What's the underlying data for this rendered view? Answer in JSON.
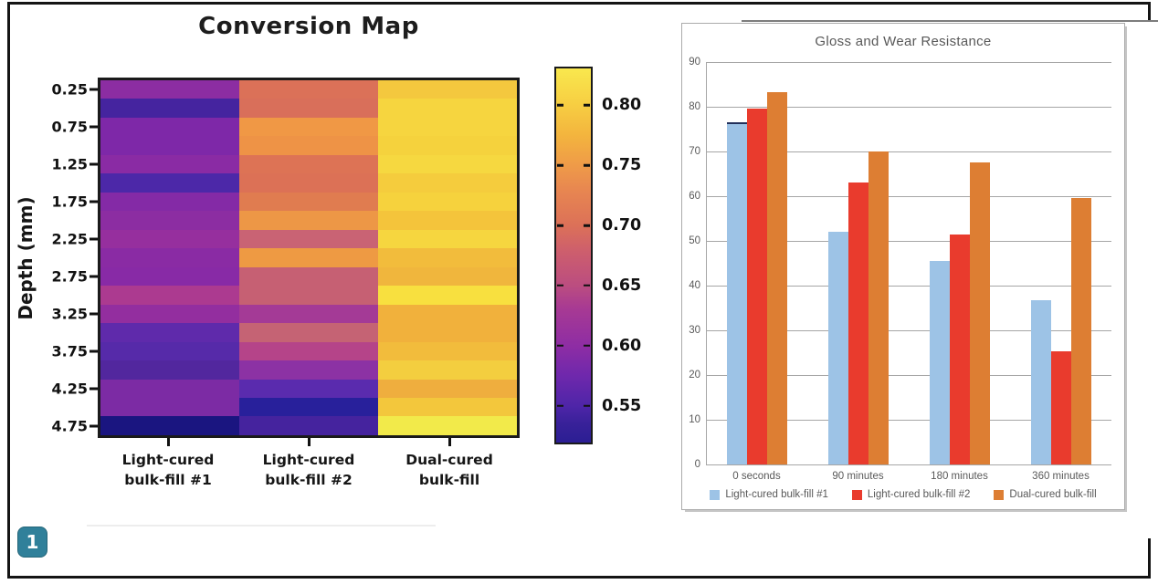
{
  "page": {
    "figure_badge": "1",
    "badge_color": "#30809a"
  },
  "chart_data": [
    {
      "type": "heatmap",
      "title": "Conversion Map",
      "ylabel": "Depth (mm)",
      "depth_mm": [
        0.25,
        0.5,
        0.75,
        1.0,
        1.25,
        1.5,
        1.75,
        2.0,
        2.25,
        2.5,
        2.75,
        3.0,
        3.25,
        3.5,
        3.75,
        4.0,
        4.25,
        4.5,
        4.75
      ],
      "depth_tick_labels": [
        "0.25",
        "0.75",
        "1.25",
        "1.75",
        "2.25",
        "2.75",
        "3.25",
        "3.75",
        "4.25",
        "4.75"
      ],
      "columns": [
        {
          "label": "Light-cured\nbulk-fill #1",
          "values": [
            0.62,
            0.555,
            0.61,
            0.61,
            0.615,
            0.56,
            0.61,
            0.62,
            0.625,
            0.615,
            0.615,
            0.645,
            0.625,
            0.585,
            0.575,
            0.57,
            0.605,
            0.605,
            0.535
          ],
          "colors": [
            "#8c2da2",
            "#45249f",
            "#7e28a8",
            "#7e28a8",
            "#8a2ba4",
            "#4c28a8",
            "#842aa6",
            "#8c2da2",
            "#962f9e",
            "#8a2ba4",
            "#882aa6",
            "#ac3a90",
            "#932e9f",
            "#5f2aab",
            "#562aa9",
            "#52279e",
            "#7c2ba4",
            "#7c2ba4",
            "#1a1580"
          ]
        },
        {
          "label": "Light-cured\nbulk-fill #2",
          "values": [
            0.7,
            0.7,
            0.735,
            0.73,
            0.705,
            0.7,
            0.71,
            0.735,
            0.68,
            0.74,
            0.675,
            0.675,
            0.64,
            0.675,
            0.655,
            0.62,
            0.58,
            0.54,
            0.555
          ],
          "colors": [
            "#db7158",
            "#d96f5a",
            "#f09845",
            "#ee9346",
            "#dd7355",
            "#dc7156",
            "#e07c50",
            "#ed9746",
            "#c96374",
            "#ee9a43",
            "#c66073",
            "#c66073",
            "#a43a96",
            "#c56374",
            "#b54489",
            "#8c32a4",
            "#5a2bae",
            "#28209b",
            "#45239e"
          ]
        },
        {
          "label": "Dual-cured\nbulk-fill",
          "values": [
            0.785,
            0.795,
            0.795,
            0.79,
            0.8,
            0.785,
            0.79,
            0.78,
            0.795,
            0.775,
            0.77,
            0.81,
            0.765,
            0.765,
            0.775,
            0.785,
            0.76,
            0.78,
            0.82
          ],
          "colors": [
            "#f4c83e",
            "#f6d53f",
            "#f6d53f",
            "#f5d23d",
            "#f6d840",
            "#f5cc3d",
            "#f6d23d",
            "#f4c43b",
            "#f6d63f",
            "#f2bc3c",
            "#f0b63d",
            "#f8e03f",
            "#f1b13c",
            "#f1b13c",
            "#f2bc3c",
            "#f3ce3f",
            "#efae3e",
            "#f3c73c",
            "#f2ea4a"
          ]
        }
      ],
      "colorbar": {
        "min": 0.52,
        "max": 0.83,
        "tick_values": [
          0.8,
          0.75,
          0.7,
          0.65,
          0.6,
          0.55
        ],
        "tick_labels": [
          "0.80",
          "0.75",
          "0.70",
          "0.65",
          "0.60",
          "0.55"
        ]
      }
    },
    {
      "type": "bar",
      "title": "Gloss and Wear Resistance",
      "categories": [
        "0 seconds",
        "90 minutes",
        "180 minutes",
        "360 minutes"
      ],
      "series": [
        {
          "name": "Light-cured bulk-fill #1",
          "color": "#9dc3e6",
          "values": [
            76.5,
            52,
            45.5,
            36.8
          ]
        },
        {
          "name": "Light-cured bulk-fill #2",
          "color": "#e93b2d",
          "values": [
            79.5,
            63,
            51.5,
            25.3
          ]
        },
        {
          "name": "Dual-cured bulk-fill",
          "color": "#dd7e33",
          "values": [
            83.3,
            70,
            67.5,
            59.5
          ]
        }
      ],
      "ylim": [
        0,
        90
      ],
      "ytick_step": 10,
      "grid": true,
      "legend_position": "bottom",
      "cap_bar": {
        "category_index": 0,
        "series_index": 0,
        "color": "#22305a"
      }
    }
  ]
}
